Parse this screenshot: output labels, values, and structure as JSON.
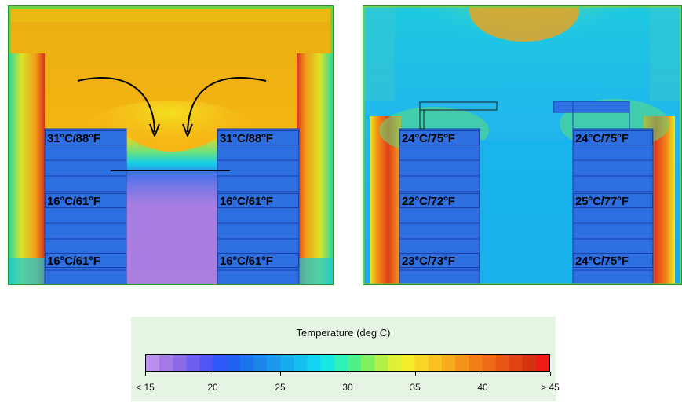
{
  "left_panel": {
    "labels": {
      "top_left": "31°C/88°F",
      "top_right": "31°C/88°F",
      "mid_left": "16°C/61°F",
      "mid_right": "16°C/61°F",
      "bottom_left": "16°C/61°F",
      "bottom_right": "16°C/61°F"
    }
  },
  "right_panel": {
    "labels": {
      "top_left": "24°C/75°F",
      "top_right": "24°C/75°F",
      "mid_left": "22°C/72°F",
      "mid_right": "25°C/77°F",
      "bottom_left": "23°C/73°F",
      "bottom_right": "24°C/75°F"
    }
  },
  "legend": {
    "title": "Temperature (deg C)",
    "ticks": [
      "< 15",
      "20",
      "25",
      "30",
      "35",
      "40",
      "> 45"
    ],
    "tick_values": [
      15,
      20,
      25,
      30,
      35,
      40,
      45
    ],
    "range": [
      15,
      45
    ]
  },
  "colors": {
    "cold_aisle": "#a77be0",
    "rack_blue": "#2d6fe0",
    "cyan": "#12d0ee",
    "warm_orange": "#f5a81a",
    "hot_red": "#e63b1c",
    "legend_bg": "#e6f5e3"
  }
}
